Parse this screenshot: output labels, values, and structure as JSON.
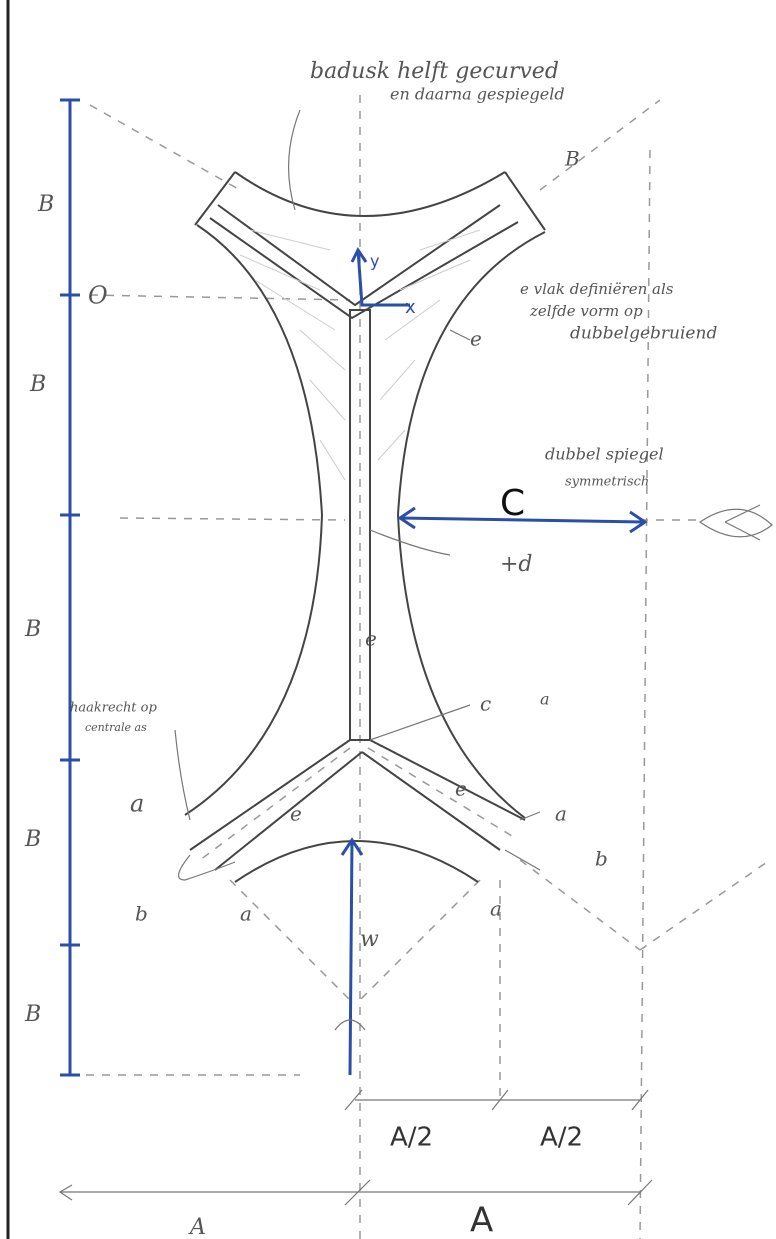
{
  "top_note": [
    "badusk helft gecurved",
    "en daarna gespiegeld"
  ],
  "plane_note": [
    "e vlak definiëren als",
    "zelfde vorm op",
    "dubbelgebruiend"
  ],
  "mirror_note": [
    "dubbel spiegel",
    "symmetrisch"
  ],
  "perpendicular_note": [
    "haakrecht op",
    "centrale as"
  ],
  "height_labels": [
    "B",
    "B",
    "B",
    "B",
    "B",
    "B"
  ],
  "origin_label": "O",
  "axis_labels": [
    "y",
    "x"
  ],
  "center_label": "C",
  "offset_label": "+d",
  "thickness_labels": [
    "e",
    "e",
    "e",
    "e"
  ],
  "point_labels": [
    "c",
    "a",
    "a",
    "a",
    "a",
    "a",
    "b",
    "b"
  ],
  "width_label": "w",
  "half_widths": [
    "A/2",
    "A/2"
  ],
  "widths": [
    "A",
    "A"
  ]
}
